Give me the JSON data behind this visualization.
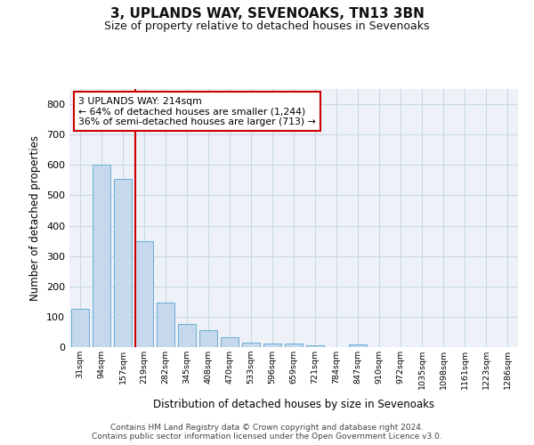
{
  "title": "3, UPLANDS WAY, SEVENOAKS, TN13 3BN",
  "subtitle": "Size of property relative to detached houses in Sevenoaks",
  "xlabel": "Distribution of detached houses by size in Sevenoaks",
  "ylabel": "Number of detached properties",
  "categories": [
    "31sqm",
    "94sqm",
    "157sqm",
    "219sqm",
    "282sqm",
    "345sqm",
    "408sqm",
    "470sqm",
    "533sqm",
    "596sqm",
    "659sqm",
    "721sqm",
    "784sqm",
    "847sqm",
    "910sqm",
    "972sqm",
    "1035sqm",
    "1098sqm",
    "1161sqm",
    "1223sqm",
    "1286sqm"
  ],
  "values": [
    125,
    600,
    553,
    348,
    148,
    75,
    55,
    33,
    15,
    12,
    12,
    7,
    0,
    10,
    0,
    0,
    0,
    0,
    0,
    0,
    0
  ],
  "bar_color": "#c5d8ec",
  "bar_edge_color": "#6aaed6",
  "subject_label": "3 UPLANDS WAY: 214sqm",
  "annotation_line1": "← 64% of detached houses are smaller (1,244)",
  "annotation_line2": "36% of semi-detached houses are larger (713) →",
  "annotation_box_color": "#ffffff",
  "annotation_box_edge": "#cc0000",
  "ylim": [
    0,
    850
  ],
  "yticks": [
    0,
    100,
    200,
    300,
    400,
    500,
    600,
    700,
    800
  ],
  "grid_color": "#c8d8e8",
  "background_color": "#eef2f8",
  "footer_line1": "Contains HM Land Registry data © Crown copyright and database right 2024.",
  "footer_line2": "Contains public sector information licensed under the Open Government Licence v3.0."
}
